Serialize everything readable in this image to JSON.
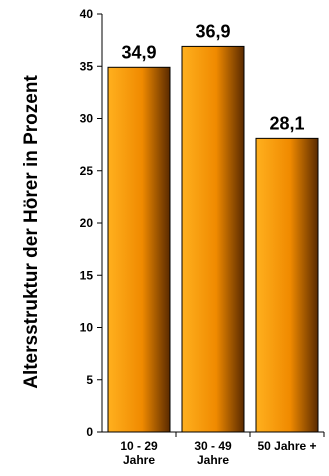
{
  "chart_data": {
    "type": "bar",
    "categories": [
      [
        "10 - 29",
        "Jahre"
      ],
      [
        "30 - 49",
        "Jahre"
      ],
      [
        "50 Jahre +"
      ]
    ],
    "values": [
      34.9,
      36.9,
      28.1
    ],
    "data_labels": [
      "34,9",
      "36,9",
      "28,1"
    ],
    "ylabel": "Altersstruktur der Hörer in Prozent",
    "ylim": [
      0,
      40
    ],
    "yticks": [
      0,
      5,
      10,
      15,
      20,
      25,
      30,
      35,
      40
    ],
    "grid": false,
    "legend": "none",
    "colors": {
      "bar_light": "#FFB01E",
      "bar_mid": "#F08A00",
      "bar_dark": "#5A2A00",
      "axis": "#000000"
    }
  }
}
